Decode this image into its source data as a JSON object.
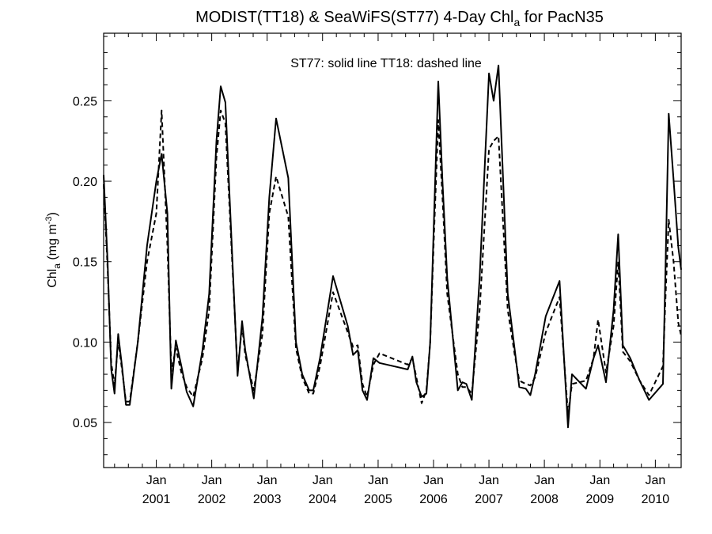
{
  "chart_data": {
    "type": "line",
    "title": {
      "main": "MODIST(TT18) & SeaWiFS(ST77) 4-Day Chl",
      "sub": "a",
      "suffix": " for PacN35"
    },
    "ylabel": {
      "main": "Chl",
      "sub": "a",
      "units_pre": " (mg m",
      "sup": "-3",
      "units_post": ")"
    },
    "annotation": "ST77: solid line   TT18: dashed line",
    "xlim": [
      "2000-01-20",
      "2010-06-20"
    ],
    "ylim": [
      0.022,
      0.292
    ],
    "ytick_values": [
      0.05,
      0.1,
      0.15,
      0.2,
      0.25
    ],
    "ytick_labels": [
      "0.05",
      "0.10",
      "0.15",
      "0.20",
      "0.25"
    ],
    "xticks": [
      {
        "date": "2001-01-01",
        "month": "Jan",
        "year": "2001"
      },
      {
        "date": "2002-01-01",
        "month": "Jan",
        "year": "2002"
      },
      {
        "date": "2003-01-01",
        "month": "Jan",
        "year": "2003"
      },
      {
        "date": "2004-01-01",
        "month": "Jan",
        "year": "2004"
      },
      {
        "date": "2005-01-01",
        "month": "Jan",
        "year": "2005"
      },
      {
        "date": "2006-01-01",
        "month": "Jan",
        "year": "2006"
      },
      {
        "date": "2007-01-01",
        "month": "Jan",
        "year": "2007"
      },
      {
        "date": "2008-01-01",
        "month": "Jan",
        "year": "2008"
      },
      {
        "date": "2009-01-01",
        "month": "Jan",
        "year": "2009"
      },
      {
        "date": "2010-01-01",
        "month": "Jan",
        "year": "2010"
      }
    ],
    "series": [
      {
        "name": "ST77",
        "line_style": "solid",
        "color": "#000000",
        "points": [
          [
            "2000-01-20",
            0.204
          ],
          [
            "2000-02-15",
            0.15
          ],
          [
            "2000-03-10",
            0.083
          ],
          [
            "2000-04-01",
            0.068
          ],
          [
            "2000-04-25",
            0.105
          ],
          [
            "2000-05-20",
            0.085
          ],
          [
            "2000-06-15",
            0.061
          ],
          [
            "2000-07-10",
            0.061
          ],
          [
            "2000-09-01",
            0.1
          ],
          [
            "2000-11-01",
            0.16
          ],
          [
            "2001-01-01",
            0.2
          ],
          [
            "2001-02-05",
            0.217
          ],
          [
            "2001-03-15",
            0.18
          ],
          [
            "2001-04-10",
            0.071
          ],
          [
            "2001-05-10",
            0.101
          ],
          [
            "2001-06-15",
            0.085
          ],
          [
            "2001-07-20",
            0.069
          ],
          [
            "2001-09-01",
            0.06
          ],
          [
            "2001-11-01",
            0.095
          ],
          [
            "2001-12-15",
            0.13
          ],
          [
            "2002-02-01",
            0.225
          ],
          [
            "2002-03-01",
            0.259
          ],
          [
            "2002-04-01",
            0.249
          ],
          [
            "2002-06-20",
            0.079
          ],
          [
            "2002-07-20",
            0.113
          ],
          [
            "2002-08-10",
            0.095
          ],
          [
            "2002-10-05",
            0.065
          ],
          [
            "2002-12-01",
            0.115
          ],
          [
            "2003-01-15",
            0.19
          ],
          [
            "2003-03-01",
            0.239
          ],
          [
            "2003-05-20",
            0.202
          ],
          [
            "2003-07-10",
            0.1
          ],
          [
            "2003-08-20",
            0.08
          ],
          [
            "2003-10-05",
            0.07
          ],
          [
            "2003-11-01",
            0.07
          ],
          [
            "2003-12-15",
            0.09
          ],
          [
            "2004-03-10",
            0.141
          ],
          [
            "2004-06-15",
            0.11
          ],
          [
            "2004-07-20",
            0.092
          ],
          [
            "2004-08-20",
            0.095
          ],
          [
            "2004-09-20",
            0.07
          ],
          [
            "2004-10-20",
            0.064
          ],
          [
            "2004-12-01",
            0.09
          ],
          [
            "2005-01-10",
            0.087
          ],
          [
            "2005-07-15",
            0.083
          ],
          [
            "2005-08-15",
            0.091
          ],
          [
            "2005-09-10",
            0.075
          ],
          [
            "2005-10-15",
            0.066
          ],
          [
            "2005-11-15",
            0.068
          ],
          [
            "2005-12-10",
            0.1
          ],
          [
            "2006-01-05",
            0.18
          ],
          [
            "2006-02-01",
            0.262
          ],
          [
            "2006-03-01",
            0.2
          ],
          [
            "2006-04-01",
            0.14
          ],
          [
            "2006-06-10",
            0.07
          ],
          [
            "2006-07-10",
            0.075
          ],
          [
            "2006-08-05",
            0.074
          ],
          [
            "2006-09-10",
            0.064
          ],
          [
            "2006-11-01",
            0.14
          ],
          [
            "2007-01-01",
            0.267
          ],
          [
            "2007-02-01",
            0.25
          ],
          [
            "2007-03-05",
            0.272
          ],
          [
            "2007-05-05",
            0.13
          ],
          [
            "2007-06-20",
            0.095
          ],
          [
            "2007-07-20",
            0.072
          ],
          [
            "2007-09-01",
            0.071
          ],
          [
            "2007-10-01",
            0.067
          ],
          [
            "2007-11-01",
            0.08
          ],
          [
            "2008-01-10",
            0.116
          ],
          [
            "2008-04-10",
            0.138
          ],
          [
            "2008-06-05",
            0.047
          ],
          [
            "2008-07-01",
            0.08
          ],
          [
            "2008-10-01",
            0.071
          ],
          [
            "2008-11-20",
            0.09
          ],
          [
            "2008-12-20",
            0.098
          ],
          [
            "2009-02-10",
            0.075
          ],
          [
            "2009-04-01",
            0.12
          ],
          [
            "2009-05-01",
            0.167
          ],
          [
            "2009-06-01",
            0.098
          ],
          [
            "2009-07-20",
            0.09
          ],
          [
            "2009-09-20",
            0.076
          ],
          [
            "2009-11-20",
            0.064
          ],
          [
            "2010-02-20",
            0.074
          ],
          [
            "2010-03-10",
            0.15
          ],
          [
            "2010-03-30",
            0.242
          ],
          [
            "2010-05-01",
            0.201
          ],
          [
            "2010-06-01",
            0.159
          ],
          [
            "2010-06-20",
            0.145
          ]
        ]
      },
      {
        "name": "TT18",
        "line_style": "dashed",
        "color": "#000000",
        "points": [
          [
            "2000-01-20",
            0.198
          ],
          [
            "2000-02-15",
            0.146
          ],
          [
            "2000-03-10",
            0.087
          ],
          [
            "2000-04-01",
            0.073
          ],
          [
            "2000-04-25",
            0.101
          ],
          [
            "2000-05-20",
            0.083
          ],
          [
            "2000-06-15",
            0.063
          ],
          [
            "2000-07-10",
            0.063
          ],
          [
            "2000-09-01",
            0.1
          ],
          [
            "2000-11-01",
            0.15
          ],
          [
            "2001-01-01",
            0.18
          ],
          [
            "2001-02-05",
            0.244
          ],
          [
            "2001-03-15",
            0.16
          ],
          [
            "2001-04-10",
            0.082
          ],
          [
            "2001-05-10",
            0.096
          ],
          [
            "2001-06-15",
            0.081
          ],
          [
            "2001-07-20",
            0.072
          ],
          [
            "2001-09-01",
            0.066
          ],
          [
            "2001-11-01",
            0.09
          ],
          [
            "2001-12-15",
            0.12
          ],
          [
            "2002-02-01",
            0.215
          ],
          [
            "2002-03-01",
            0.244
          ],
          [
            "2002-04-01",
            0.236
          ],
          [
            "2002-06-20",
            0.082
          ],
          [
            "2002-07-20",
            0.11
          ],
          [
            "2002-08-10",
            0.092
          ],
          [
            "2002-10-05",
            0.07
          ],
          [
            "2002-12-01",
            0.105
          ],
          [
            "2003-01-15",
            0.18
          ],
          [
            "2003-03-01",
            0.203
          ],
          [
            "2003-05-20",
            0.178
          ],
          [
            "2003-07-10",
            0.096
          ],
          [
            "2003-08-20",
            0.078
          ],
          [
            "2003-10-05",
            0.068
          ],
          [
            "2003-11-01",
            0.068
          ],
          [
            "2003-12-15",
            0.085
          ],
          [
            "2004-03-10",
            0.131
          ],
          [
            "2004-06-15",
            0.106
          ],
          [
            "2004-07-20",
            0.097
          ],
          [
            "2004-08-20",
            0.098
          ],
          [
            "2004-09-20",
            0.074
          ],
          [
            "2004-10-20",
            0.066
          ],
          [
            "2004-12-01",
            0.086
          ],
          [
            "2005-01-10",
            0.093
          ],
          [
            "2005-07-15",
            0.086
          ],
          [
            "2005-08-15",
            0.09
          ],
          [
            "2005-09-10",
            0.078
          ],
          [
            "2005-10-15",
            0.062
          ],
          [
            "2005-11-15",
            0.07
          ],
          [
            "2005-12-10",
            0.1
          ],
          [
            "2006-01-05",
            0.17
          ],
          [
            "2006-02-01",
            0.238
          ],
          [
            "2006-03-01",
            0.19
          ],
          [
            "2006-04-01",
            0.13
          ],
          [
            "2006-06-10",
            0.08
          ],
          [
            "2006-07-10",
            0.072
          ],
          [
            "2006-08-05",
            0.072
          ],
          [
            "2006-09-10",
            0.068
          ],
          [
            "2006-11-01",
            0.12
          ],
          [
            "2007-01-01",
            0.22
          ],
          [
            "2007-02-01",
            0.225
          ],
          [
            "2007-03-05",
            0.228
          ],
          [
            "2007-05-05",
            0.12
          ],
          [
            "2007-06-20",
            0.092
          ],
          [
            "2007-07-20",
            0.076
          ],
          [
            "2007-09-01",
            0.074
          ],
          [
            "2007-10-01",
            0.073
          ],
          [
            "2007-11-01",
            0.078
          ],
          [
            "2008-01-10",
            0.106
          ],
          [
            "2008-04-10",
            0.128
          ],
          [
            "2008-06-05",
            0.055
          ],
          [
            "2008-07-01",
            0.074
          ],
          [
            "2008-10-01",
            0.076
          ],
          [
            "2008-11-20",
            0.09
          ],
          [
            "2008-12-20",
            0.114
          ],
          [
            "2009-02-10",
            0.081
          ],
          [
            "2009-04-01",
            0.11
          ],
          [
            "2009-05-01",
            0.15
          ],
          [
            "2009-06-01",
            0.094
          ],
          [
            "2009-07-20",
            0.088
          ],
          [
            "2009-09-20",
            0.076
          ],
          [
            "2009-11-20",
            0.067
          ],
          [
            "2010-02-20",
            0.085
          ],
          [
            "2010-03-10",
            0.13
          ],
          [
            "2010-03-30",
            0.176
          ],
          [
            "2010-05-01",
            0.15
          ],
          [
            "2010-06-01",
            0.112
          ],
          [
            "2010-06-20",
            0.104
          ]
        ]
      }
    ]
  }
}
